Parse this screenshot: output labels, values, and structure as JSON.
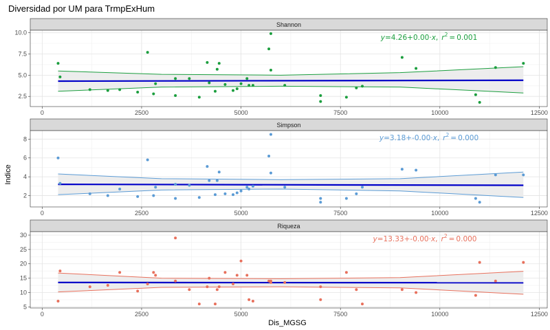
{
  "chart_data": {
    "type": "scatter",
    "title": "Diversidad por UM para TrmpExHum",
    "xlabel": "Dis_MGSG",
    "ylabel": "Indice",
    "x_ticks": [
      0,
      2500,
      5000,
      7500,
      10000,
      12500
    ],
    "xlim": [
      -300,
      12700
    ],
    "grid": true,
    "colors": {
      "fit_line": "#0000c8",
      "ci_fill": "#ebebeb",
      "strip_bg": "#d9d9d9"
    },
    "panels": [
      {
        "name": "Shannon",
        "color": "#1b9e3e",
        "ylim": [
          1.3,
          10.3
        ],
        "y_ticks": [
          2.5,
          5.0,
          7.5,
          10.0
        ],
        "y_tick_labels": [
          "2.5",
          "5.0",
          "7.5",
          "10.0"
        ],
        "equation": {
          "y": "y",
          "eq": "=",
          "intercept": "4.26",
          "op": "+",
          "slope": "0.00",
          "dot": "·",
          "x": "x",
          "comma": ",",
          "r": "r",
          "r_exp": "2",
          "eq2": "=",
          "r2": "0.001"
        },
        "fit": {
          "x": [
            400,
            12100
          ],
          "y": [
            4.3,
            4.4
          ]
        },
        "ci_upper": {
          "x": [
            400,
            3000,
            6000,
            9000,
            12100
          ],
          "y": [
            5.5,
            5.1,
            5.0,
            5.3,
            6.0
          ]
        },
        "ci_lower": {
          "x": [
            400,
            3000,
            6000,
            9000,
            12100
          ],
          "y": [
            3.1,
            3.6,
            3.7,
            3.6,
            2.9
          ]
        },
        "points": {
          "x": [
            400,
            450,
            1200,
            1650,
            1950,
            2400,
            2650,
            2800,
            2850,
            3350,
            3350,
            3700,
            3950,
            4150,
            4200,
            4350,
            4400,
            4450,
            4600,
            4800,
            4900,
            5000,
            5150,
            5200,
            5300,
            5700,
            5750,
            5750,
            6100,
            7000,
            7000,
            7650,
            7900,
            8050,
            9050,
            9400,
            10900,
            11000,
            11400,
            12100
          ],
          "y": [
            6.4,
            4.8,
            3.3,
            3.2,
            3.3,
            3.0,
            7.7,
            2.8,
            4.0,
            4.6,
            2.6,
            4.6,
            2.4,
            6.5,
            4.1,
            3.1,
            5.7,
            6.4,
            3.9,
            3.2,
            3.4,
            4.0,
            4.6,
            3.8,
            3.8,
            8.1,
            9.9,
            5.6,
            3.8,
            1.9,
            2.6,
            2.4,
            3.5,
            3.7,
            7.1,
            5.8,
            2.7,
            1.8,
            5.9,
            6.4
          ]
        }
      },
      {
        "name": "Simpson",
        "color": "#5b9bd5",
        "ylim": [
          0.8,
          8.9
        ],
        "y_ticks": [
          2,
          4,
          6,
          8
        ],
        "y_tick_labels": [
          "2",
          "4",
          "6",
          "8"
        ],
        "equation": {
          "y": "y",
          "eq": "=",
          "intercept": "3.18",
          "op": "+",
          "slope": "-0.00",
          "dot": "·",
          "x": "x",
          "comma": ",",
          "r": "r",
          "r_exp": "2",
          "eq2": "=",
          "r2": "0.000"
        },
        "fit": {
          "x": [
            400,
            12100
          ],
          "y": [
            3.2,
            3.1
          ]
        },
        "ci_upper": {
          "x": [
            400,
            3000,
            6000,
            9000,
            12100
          ],
          "y": [
            4.3,
            3.8,
            3.7,
            3.8,
            4.5
          ]
        },
        "ci_lower": {
          "x": [
            400,
            3000,
            6000,
            9000,
            12100
          ],
          "y": [
            2.1,
            2.6,
            2.7,
            2.5,
            1.8
          ]
        },
        "points": {
          "x": [
            400,
            450,
            1200,
            1650,
            1950,
            2400,
            2650,
            2800,
            2850,
            3350,
            3350,
            3700,
            3950,
            4150,
            4200,
            4350,
            4400,
            4450,
            4600,
            4800,
            4900,
            5000,
            5150,
            5200,
            5300,
            5700,
            5750,
            5750,
            6100,
            7000,
            7000,
            7650,
            7900,
            8050,
            9050,
            9400,
            10900,
            11000,
            11400,
            12100
          ],
          "y": [
            6.0,
            3.3,
            2.2,
            2.0,
            2.7,
            1.9,
            5.8,
            2.0,
            2.9,
            3.2,
            1.7,
            3.1,
            1.8,
            5.1,
            3.6,
            2.1,
            3.6,
            4.5,
            2.2,
            2.1,
            2.3,
            2.5,
            2.9,
            2.7,
            3.0,
            6.2,
            8.5,
            4.4,
            2.9,
            1.3,
            1.7,
            1.7,
            2.2,
            2.9,
            4.8,
            4.7,
            1.7,
            1.3,
            4.2,
            4.2
          ]
        }
      },
      {
        "name": "Riqueza",
        "color": "#e8705c",
        "ylim": [
          4.6,
          31.2
        ],
        "y_ticks": [
          5,
          10,
          15,
          20,
          25,
          30
        ],
        "y_tick_labels": [
          "5",
          "10",
          "15",
          "20",
          "25",
          "30"
        ],
        "equation": {
          "y": "y",
          "eq": "=",
          "intercept": "13.33",
          "op": "+",
          "slope": "-0.00",
          "dot": "·",
          "x": "x",
          "comma": ",",
          "r": "r",
          "r_exp": "2",
          "eq2": "=",
          "r2": "0.000"
        },
        "fit": {
          "x": [
            400,
            12100
          ],
          "y": [
            13.5,
            13.4
          ]
        },
        "ci_upper": {
          "x": [
            400,
            3000,
            6000,
            9000,
            12100
          ],
          "y": [
            16.8,
            15.0,
            14.8,
            15.2,
            17.4
          ]
        },
        "ci_lower": {
          "x": [
            400,
            3000,
            6000,
            9000,
            12100
          ],
          "y": [
            10.2,
            11.8,
            12.0,
            11.6,
            9.4
          ]
        },
        "points": {
          "x": [
            400,
            450,
            1200,
            1650,
            1950,
            2400,
            2650,
            2800,
            2850,
            3350,
            3350,
            3700,
            3950,
            4150,
            4200,
            4350,
            4400,
            4450,
            4600,
            4800,
            4900,
            5000,
            5150,
            5200,
            5300,
            5700,
            5750,
            5750,
            6100,
            7000,
            7000,
            7650,
            7900,
            8050,
            9050,
            9400,
            10900,
            11000,
            11400,
            12100
          ],
          "y": [
            7.0,
            17.5,
            12.0,
            12.5,
            17.0,
            10.5,
            13.0,
            17.0,
            16.0,
            29.0,
            14.0,
            11.0,
            6.0,
            12.0,
            15.0,
            6.0,
            11.0,
            12.0,
            17.0,
            13.0,
            16.0,
            21.0,
            16.0,
            7.5,
            7.0,
            14.0,
            13.5,
            14.0,
            13.5,
            12.0,
            7.5,
            17.0,
            11.0,
            6.0,
            11.0,
            10.0,
            9.0,
            20.5,
            14.0,
            20.5
          ]
        }
      }
    ]
  }
}
